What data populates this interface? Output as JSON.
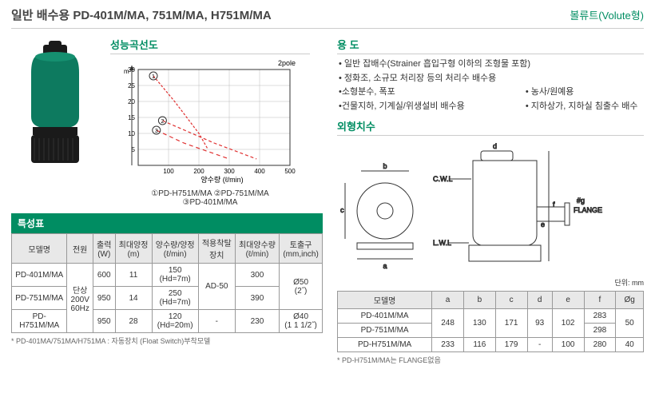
{
  "header": {
    "title_prefix": "일반 배수용",
    "title_models": "PD-401M/MA, 751M/MA, H751M/MA",
    "type_label": "볼류트(Volute형)"
  },
  "sections": {
    "perf_curve": "성능곡선도",
    "usage": "용  도",
    "dimensions": "외형치수",
    "spec": "특성표"
  },
  "chart": {
    "type": "line",
    "pole_label": "2pole",
    "xlabel": "양수량 (ℓ/min)",
    "ylabel": "m",
    "xlim": [
      0,
      500
    ],
    "ylim": [
      0,
      30
    ],
    "xtick_step": 100,
    "ytick_step": 5,
    "xticks": [
      "100",
      "200",
      "300",
      "400",
      "500"
    ],
    "yticks": [
      "5",
      "10",
      "15",
      "20",
      "25",
      "30"
    ],
    "grid_color": "#bbb",
    "background_color": "#ffffff",
    "series": [
      {
        "name": "PD-H751M/MA",
        "color": "#e03030",
        "dash": "3,2",
        "points": [
          [
            50,
            28
          ],
          [
            120,
            20
          ],
          [
            200,
            10
          ],
          [
            230,
            5
          ]
        ]
      },
      {
        "name": "PD-751M/MA",
        "color": "#e03030",
        "dash": "4,3",
        "points": [
          [
            80,
            14
          ],
          [
            250,
            7
          ],
          [
            390,
            2
          ]
        ]
      },
      {
        "name": "PD-401M/MA",
        "color": "#e03030",
        "dash": "5,4",
        "points": [
          [
            60,
            11
          ],
          [
            150,
            7
          ],
          [
            300,
            2
          ]
        ]
      }
    ],
    "legend": {
      "l1": "①PD-H751M/MA",
      "l2": "②PD-751M/MA",
      "l3": "③PD-401M/MA"
    }
  },
  "usage_items": [
    "일반 잡배수(Strainer 흡입구형 이하의 조형물 포함)",
    "정화조, 소규모 처리장 등의 처리수 배수용"
  ],
  "usage_rows": [
    {
      "u1": "소형분수, 폭포",
      "u2": "농사/원예용"
    },
    {
      "u1": "건물지하, 기계실/위생설비 배수용",
      "u2": "지하상가, 지하실 침출수 배수"
    }
  ],
  "spec_table": {
    "columns": [
      "모델명",
      "전원",
      "출력\n(W)",
      "최대양정\n(m)",
      "양수량/양정\n(ℓ/min)",
      "적용착탈\n장치",
      "최대양수량\n(ℓ/min)",
      "토출구\n(mm,inch)"
    ],
    "rows": [
      [
        "PD-401M/MA",
        "단상\n200V\n60Hz",
        "600",
        "11",
        "150\n(Hd=7m)",
        "AD-50",
        "300",
        "Ø50\n(2˝)"
      ],
      [
        "PD-751M/MA",
        "",
        "950",
        "14",
        "250\n(Hd=7m)",
        "",
        "390",
        ""
      ],
      [
        "PD-\nH751M/MA",
        "",
        "950",
        "28",
        "120\n(Hd=20m)",
        "-",
        "230",
        "Ø40\n(1 1 1/2˝)"
      ]
    ]
  },
  "dim_table": {
    "unit": "단위: mm",
    "columns": [
      "모델명",
      "a",
      "b",
      "c",
      "d",
      "e",
      "f",
      "Øg"
    ],
    "rows": [
      [
        "PD-401M/MA",
        "248",
        "130",
        "171",
        "93",
        "102",
        "283",
        "50"
      ],
      [
        "PD-751M/MA",
        "",
        "",
        "",
        "",
        "",
        "298",
        ""
      ],
      [
        "PD-H751M/MA",
        "233",
        "116",
        "179",
        "-",
        "100",
        "280",
        "40"
      ]
    ]
  },
  "notes": {
    "spec": "* PD-401MA/751MA/H751MA : 자동장치 (Float Switch)부착모델",
    "dim": "* PD-H751M/MA는 FLANGE없음"
  },
  "diagram_labels": {
    "cwl": "C.W.L",
    "lwl": "L.W.L",
    "flange": "#g\nFLANGE"
  },
  "colors": {
    "accent": "#008d62",
    "pump_body": "#0d7a5f",
    "pump_dark": "#1a1a1a"
  }
}
